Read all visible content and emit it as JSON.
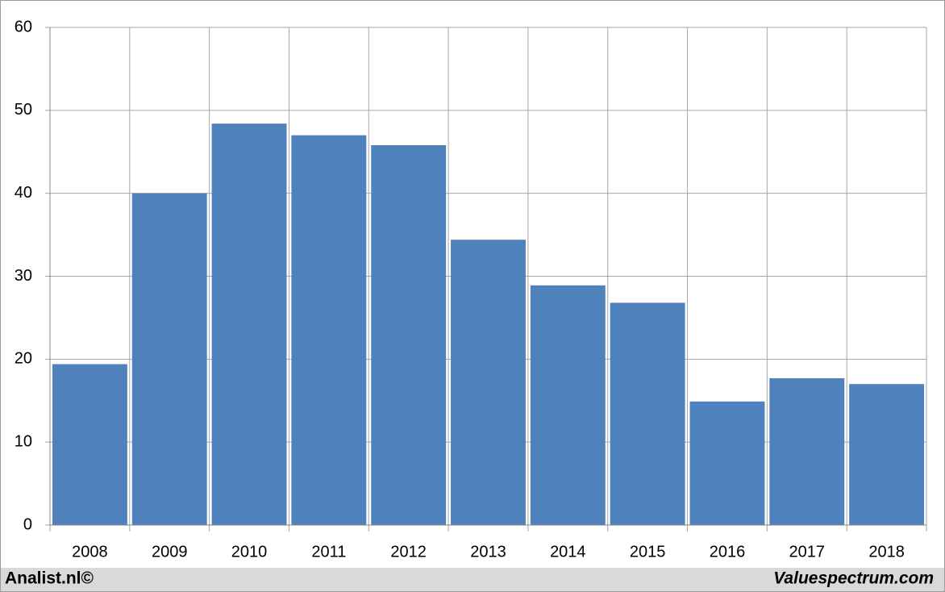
{
  "chart_data": {
    "type": "bar",
    "categories": [
      "2008",
      "2009",
      "2010",
      "2011",
      "2012",
      "2013",
      "2014",
      "2015",
      "2016",
      "2017",
      "2018"
    ],
    "values": [
      19.4,
      40.0,
      48.4,
      47.0,
      45.8,
      34.4,
      28.9,
      26.8,
      14.9,
      17.7,
      17.0
    ],
    "color": "#4f81bd",
    "ylim": [
      0,
      60
    ],
    "yticks": [
      0,
      10,
      20,
      30,
      40,
      50,
      60
    ],
    "grid": true
  },
  "footer": {
    "left": "Analist.nl©",
    "right": "Valuespectrum.com"
  }
}
